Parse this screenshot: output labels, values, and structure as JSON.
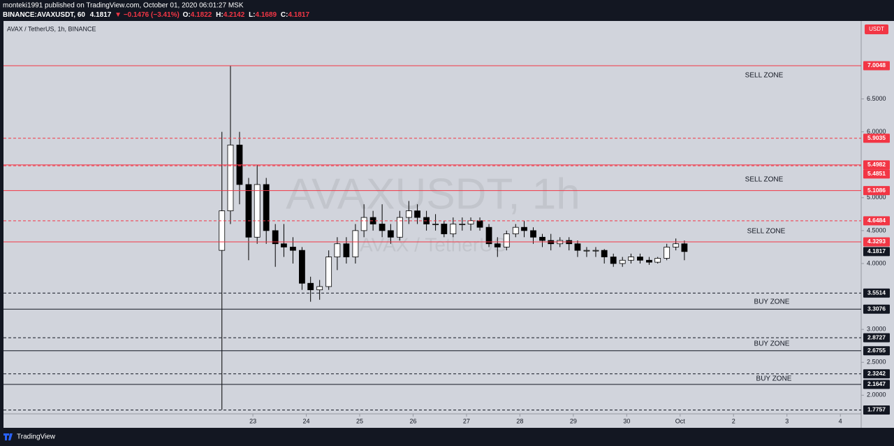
{
  "header": {
    "author_line": "monteki1991 published on TradingView.com, October 01, 2020 06:01:27 MSK",
    "symbol": "BINANCE:AVAXUSDT, 60",
    "price": "4.1817",
    "change": "▼ −0.1476 (−3.41%)",
    "ohlc": [
      {
        "key": "O:",
        "value": "4.1822"
      },
      {
        "key": "H:",
        "value": "4.2142"
      },
      {
        "key": "L:",
        "value": "4.1689"
      },
      {
        "key": "C:",
        "value": "4.1817"
      }
    ]
  },
  "footer": {
    "brand": "TradingView"
  },
  "chart_data": {
    "type": "candlestick",
    "legend": "AVAX / TetherUS, 1h, BINANCE",
    "watermark": "AVAXUSDT, 1h",
    "watermark_sub": "AVAX / TetherUS",
    "unit": "USDT",
    "up_color": "#ffffff",
    "down_color": "#000000",
    "wick_color": "#000000",
    "x": [
      22.42,
      22.58,
      22.75,
      22.92,
      23.08,
      23.25,
      23.42,
      23.58,
      23.75,
      23.92,
      24.08,
      24.25,
      24.42,
      24.58,
      24.75,
      24.92,
      25.08,
      25.25,
      25.42,
      25.58,
      25.75,
      25.92,
      26.08,
      26.25,
      26.42,
      26.58,
      26.75,
      26.92,
      27.08,
      27.25,
      27.42,
      27.58,
      27.75,
      27.92,
      28.08,
      28.25,
      28.42,
      28.58,
      28.75,
      28.92,
      29.08,
      29.25,
      29.42,
      29.58,
      29.75,
      29.92,
      30.08,
      30.25,
      30.42,
      30.58,
      30.75,
      30.92,
      31.08
    ],
    "open": [
      4.2,
      4.8,
      5.8,
      5.2,
      4.4,
      5.2,
      4.5,
      4.3,
      4.25,
      4.2,
      3.7,
      3.6,
      3.65,
      4.1,
      4.3,
      4.1,
      4.5,
      4.7,
      4.6,
      4.5,
      4.4,
      4.7,
      4.8,
      4.7,
      4.6,
      4.6,
      4.45,
      4.6,
      4.6,
      4.65,
      4.55,
      4.3,
      4.25,
      4.45,
      4.55,
      4.5,
      4.4,
      4.35,
      4.3,
      4.35,
      4.3,
      4.2,
      4.2,
      4.2,
      4.1,
      4.0,
      4.05,
      4.1,
      4.05,
      4.02,
      4.08,
      4.25,
      4.3
    ],
    "high": [
      6.0,
      7.0,
      6.0,
      5.3,
      5.5,
      5.3,
      4.6,
      4.6,
      4.4,
      4.25,
      3.8,
      3.75,
      4.2,
      4.4,
      4.4,
      4.6,
      4.9,
      4.8,
      4.9,
      4.6,
      4.8,
      4.95,
      4.9,
      4.8,
      4.75,
      4.65,
      4.7,
      4.7,
      4.7,
      4.7,
      4.6,
      4.4,
      4.5,
      4.6,
      4.65,
      4.55,
      4.45,
      4.45,
      4.4,
      4.4,
      4.35,
      4.25,
      4.25,
      4.22,
      4.15,
      4.1,
      4.15,
      4.15,
      4.1,
      4.1,
      4.3,
      4.38,
      4.35
    ],
    "low": [
      1.78,
      4.6,
      4.9,
      4.05,
      4.3,
      4.3,
      3.95,
      4.1,
      4.0,
      3.6,
      3.42,
      3.45,
      3.6,
      3.9,
      4.0,
      4.0,
      4.4,
      4.5,
      4.4,
      4.3,
      4.35,
      4.6,
      4.6,
      4.5,
      4.5,
      4.4,
      4.4,
      4.5,
      4.5,
      4.5,
      4.25,
      4.1,
      4.2,
      4.4,
      4.4,
      4.3,
      4.25,
      4.2,
      4.25,
      4.2,
      4.1,
      4.1,
      4.1,
      4.0,
      3.95,
      3.95,
      4.0,
      4.0,
      3.98,
      4.0,
      4.05,
      4.2,
      4.05
    ],
    "close": [
      4.8,
      5.8,
      5.2,
      4.4,
      5.2,
      4.5,
      4.3,
      4.25,
      4.2,
      3.7,
      3.6,
      3.65,
      4.1,
      4.3,
      4.1,
      4.5,
      4.7,
      4.6,
      4.5,
      4.4,
      4.7,
      4.8,
      4.7,
      4.6,
      4.6,
      4.45,
      4.6,
      4.6,
      4.65,
      4.55,
      4.3,
      4.25,
      4.45,
      4.55,
      4.5,
      4.4,
      4.35,
      4.3,
      4.35,
      4.3,
      4.2,
      4.2,
      4.2,
      4.1,
      4.0,
      4.05,
      4.1,
      4.05,
      4.02,
      4.08,
      4.25,
      4.3,
      4.1817
    ],
    "xlim": [
      18.33,
      34.39
    ],
    "xticks": [
      23,
      24,
      25,
      26,
      27,
      28,
      29,
      30,
      {
        "value": 31,
        "label": "Oct"
      },
      {
        "value": 32,
        "label": "2"
      },
      {
        "value": 33,
        "label": "3"
      },
      {
        "value": 34,
        "label": "4"
      }
    ],
    "ylim": [
      1.717,
      7.684
    ],
    "yticks": [
      {
        "value": 2.0,
        "label": "2.0000"
      },
      {
        "value": 2.5,
        "label": "2.5000"
      },
      {
        "value": 3.0,
        "label": "3.0000"
      },
      {
        "value": 4.0,
        "label": "4.0000"
      },
      {
        "value": 4.5,
        "label": "4.5000"
      },
      {
        "value": 5.0,
        "label": "5.0000"
      },
      {
        "value": 6.0,
        "label": "6.0000"
      },
      {
        "value": 6.5,
        "label": "6.5000"
      }
    ],
    "grid": false,
    "levels": [
      {
        "value": 7.0048,
        "color": "#f23645",
        "style": "solid"
      },
      {
        "value": 5.9035,
        "color": "#f23645",
        "style": "dashed"
      },
      {
        "value": 5.4982,
        "color": "#f23645",
        "style": "solid"
      },
      {
        "value": 5.4851,
        "color": "#f23645",
        "style": "dashed"
      },
      {
        "value": 5.1086,
        "color": "#f23645",
        "style": "solid"
      },
      {
        "value": 4.6484,
        "color": "#f23645",
        "style": "dashed"
      },
      {
        "value": 4.3293,
        "color": "#f23645",
        "style": "solid"
      },
      {
        "value": 3.5514,
        "color": "#131722",
        "style": "dashed"
      },
      {
        "value": 3.3076,
        "color": "#131722",
        "style": "solid"
      },
      {
        "value": 2.8727,
        "color": "#131722",
        "style": "dashed"
      },
      {
        "value": 2.6755,
        "color": "#131722",
        "style": "solid"
      },
      {
        "value": 2.3242,
        "color": "#131722",
        "style": "dashed"
      },
      {
        "value": 2.1647,
        "color": "#131722",
        "style": "solid"
      },
      {
        "value": 1.7757,
        "color": "#131722",
        "style": "dashed"
      }
    ],
    "last_price": 4.1817,
    "annotations": [
      "SELL ZONE",
      "SELL ZONE",
      "SELL ZONE",
      "BUY ZONE",
      "BUY ZONE",
      "BUY ZONE"
    ]
  }
}
